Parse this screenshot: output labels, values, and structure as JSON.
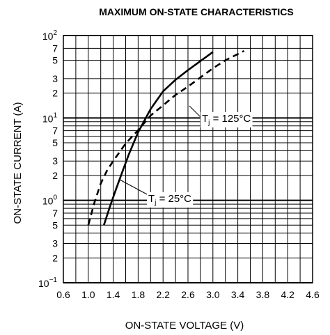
{
  "chart_data": {
    "type": "line",
    "title": "MAXIMUM ON-STATE CHARACTERISTICS",
    "xlabel": "ON-STATE VOLTAGE  (V)",
    "ylabel": "ON-STATE CURRENT  (A)",
    "xlim": [
      0.6,
      4.6
    ],
    "ylim": [
      0.1,
      100
    ],
    "yscale": "log",
    "grid": true,
    "x_ticks": [
      {
        "value": 0.6,
        "label": "0.6"
      },
      {
        "value": 1.0,
        "label": "1.0"
      },
      {
        "value": 1.4,
        "label": "1.4"
      },
      {
        "value": 1.8,
        "label": "1.8"
      },
      {
        "value": 2.2,
        "label": "2.2"
      },
      {
        "value": 2.6,
        "label": "2.6"
      },
      {
        "value": 3.0,
        "label": "3.0"
      },
      {
        "value": 3.4,
        "label": "3.4"
      },
      {
        "value": 3.8,
        "label": "3.8"
      },
      {
        "value": 4.2,
        "label": "4.2"
      },
      {
        "value": 4.6,
        "label": "4.6"
      }
    ],
    "y_decade_ticks": [
      {
        "value": 100,
        "base": "10",
        "exp": "2"
      },
      {
        "value": 10,
        "base": "10",
        "exp": "1"
      },
      {
        "value": 1,
        "base": "10",
        "exp": "0"
      },
      {
        "value": 0.1,
        "base": "10",
        "exp": "−1"
      }
    ],
    "y_minor_ticks": [
      {
        "value": 70,
        "label": "7"
      },
      {
        "value": 50,
        "label": "5"
      },
      {
        "value": 30,
        "label": "3"
      },
      {
        "value": 20,
        "label": "2"
      },
      {
        "value": 7,
        "label": "7"
      },
      {
        "value": 5,
        "label": "5"
      },
      {
        "value": 3,
        "label": "3"
      },
      {
        "value": 2,
        "label": "2"
      },
      {
        "value": 0.7,
        "label": "7"
      },
      {
        "value": 0.5,
        "label": "5"
      },
      {
        "value": 0.3,
        "label": "3"
      },
      {
        "value": 0.2,
        "label": "2"
      }
    ],
    "y_gridlines": [
      100,
      70,
      50,
      30,
      20,
      10,
      9,
      8,
      7,
      6,
      5,
      4,
      3,
      2,
      1,
      0.9,
      0.8,
      0.7,
      0.6,
      0.5,
      0.4,
      0.3,
      0.2,
      0.1
    ],
    "series": [
      {
        "name": "Tj = 25°C",
        "style": "solid",
        "x": [
          1.25,
          1.35,
          1.45,
          1.55,
          1.65,
          1.8,
          2.0,
          2.2,
          2.4,
          2.6,
          2.8,
          3.0
        ],
        "y": [
          0.5,
          0.85,
          1.4,
          2.25,
          3.6,
          6.7,
          12.8,
          21,
          29,
          38,
          49,
          63
        ]
      },
      {
        "name": "Tj = 125°C",
        "style": "dashed",
        "x": [
          1.0,
          1.1,
          1.2,
          1.3,
          1.4,
          1.6,
          1.8,
          2.0,
          2.2,
          2.4,
          2.6,
          2.8,
          3.0,
          3.2,
          3.5
        ],
        "y": [
          0.5,
          0.95,
          1.6,
          2.3,
          3.0,
          4.9,
          7.1,
          10.7,
          14.2,
          19,
          24,
          31,
          40,
          50,
          65
        ]
      }
    ],
    "annotations": [
      {
        "base": "T",
        "sub": "j",
        "text": " = 125°C",
        "series_index": 1
      },
      {
        "base": "T",
        "sub": "j",
        "text": " = 25°C",
        "series_index": 0
      }
    ]
  }
}
